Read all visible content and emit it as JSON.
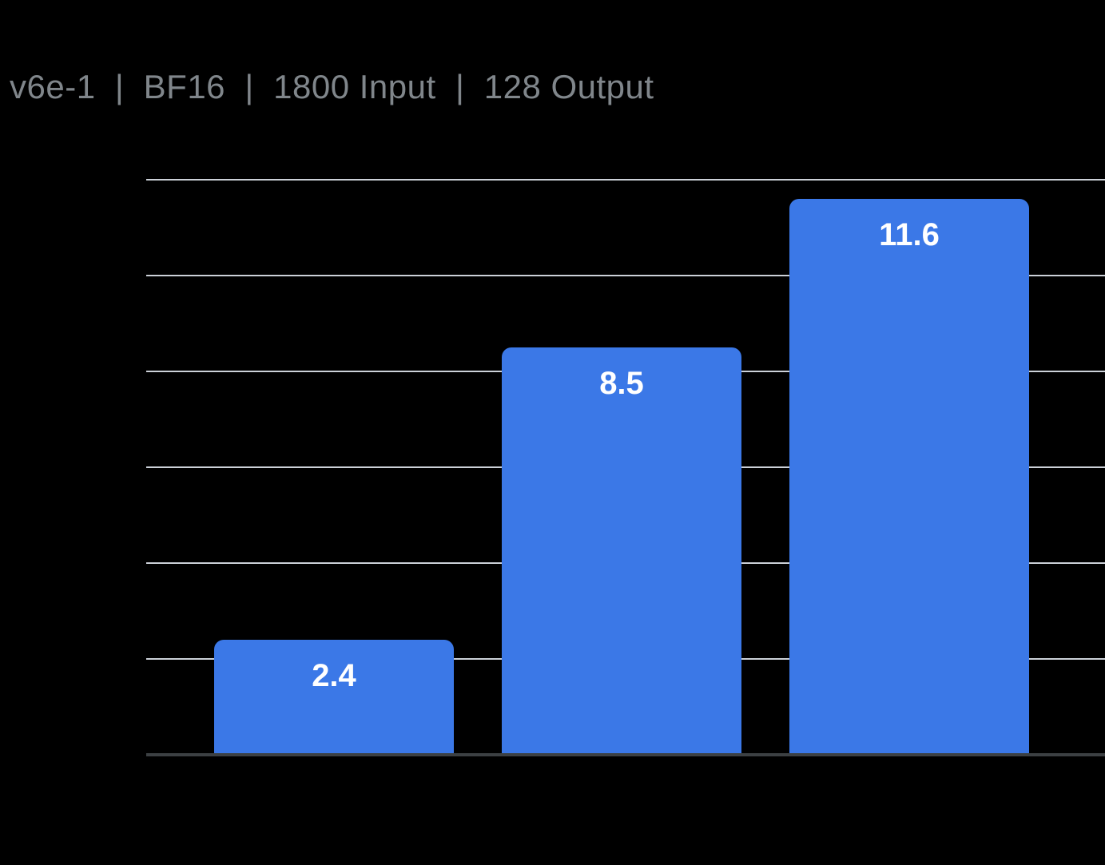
{
  "header": {
    "title": "v6e-1  |  BF16  |  1800 Input  |  128 Output"
  },
  "colors": {
    "background": "#000000",
    "bar": "#3b78e7",
    "gridline": "#ccd1d8",
    "axis_line": "#3c4043",
    "title_text": "#80868b",
    "value_label": "#ffffff"
  },
  "chart_data": {
    "type": "bar",
    "title": "v6e-1  |  BF16  |  1800 Input  |  128 Output",
    "categories": [
      "",
      "",
      ""
    ],
    "values": [
      2.4,
      8.5,
      11.6
    ],
    "data_labels": [
      "2.4",
      "8.5",
      "11.6"
    ],
    "xlabel": "",
    "ylabel": "",
    "ylim": [
      0,
      12
    ],
    "gridline_step": 2,
    "grid": true,
    "legend": false,
    "axis_tick_labels_visible": false
  }
}
